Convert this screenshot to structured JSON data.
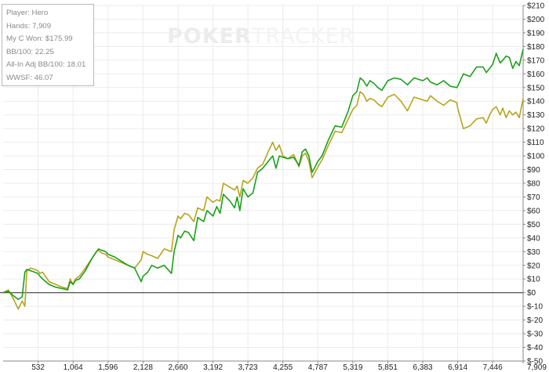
{
  "watermark": {
    "part1": "POKER",
    "part2": "TRACKER"
  },
  "legend": {
    "lines": [
      "Player: Hero",
      "Hands: 7,909",
      "My C Won: $175.99",
      "BB/100: 22.25",
      "All-In Adj BB/100: 18.01",
      "WWSF: 46.07"
    ]
  },
  "chart_data": {
    "type": "line",
    "title": "",
    "xlabel": "",
    "ylabel": "",
    "xlim": [
      0,
      7909
    ],
    "ylim": [
      -50,
      210
    ],
    "grid": true,
    "legend_placement": "top-left",
    "x_ticks": [
      "532",
      "1,064",
      "1,596",
      "2,128",
      "2,660",
      "3,192",
      "3,723",
      "4,255",
      "4,787",
      "5,319",
      "5,851",
      "6,383",
      "6,914",
      "7,446",
      "7,909"
    ],
    "x_tick_values": [
      532,
      1064,
      1596,
      2128,
      2660,
      3192,
      3723,
      4255,
      4787,
      5319,
      5851,
      6383,
      6914,
      7446,
      7909
    ],
    "y_ticks": [
      "$-50",
      "$-40",
      "$-30",
      "$-20",
      "$-10",
      "$0",
      "$10",
      "$20",
      "$30",
      "$40",
      "$50",
      "$60",
      "$70",
      "$80",
      "$90",
      "$100",
      "$110",
      "$120",
      "$130",
      "$140",
      "$150",
      "$160",
      "$170",
      "$180",
      "$190",
      "$200",
      "$210"
    ],
    "y_tick_values": [
      -50,
      -40,
      -30,
      -20,
      -10,
      0,
      10,
      20,
      30,
      40,
      50,
      60,
      70,
      80,
      90,
      100,
      110,
      120,
      130,
      140,
      150,
      160,
      170,
      180,
      190,
      200,
      210
    ],
    "series": [
      {
        "color": "#1aa01a",
        "x": [
          0,
          80,
          150,
          230,
          290,
          330,
          360,
          420,
          480,
          530,
          560,
          600,
          700,
          800,
          900,
          980,
          1020,
          1064,
          1100,
          1160,
          1250,
          1350,
          1420,
          1450,
          1500,
          1560,
          1596,
          1700,
          1800,
          1900,
          2000,
          2100,
          2128,
          2200,
          2260,
          2350,
          2450,
          2560,
          2600,
          2660,
          2700,
          2760,
          2820,
          2900,
          2960,
          3050,
          3100,
          3192,
          3250,
          3300,
          3350,
          3450,
          3520,
          3560,
          3600,
          3650,
          3723,
          3800,
          3870,
          3950,
          4050,
          4100,
          4150,
          4200,
          4255,
          4330,
          4420,
          4500,
          4550,
          4600,
          4650,
          4700,
          4787,
          4850,
          4950,
          5050,
          5150,
          5250,
          5319,
          5380,
          5430,
          5480,
          5530,
          5580,
          5640,
          5700,
          5760,
          5851,
          5950,
          6050,
          6150,
          6250,
          6383,
          6450,
          6500,
          6600,
          6700,
          6800,
          6900,
          6914,
          7000,
          7100,
          7200,
          7300,
          7350,
          7400,
          7446,
          7500,
          7560,
          7600,
          7650,
          7700,
          7750,
          7800,
          7850,
          7909
        ],
        "values": [
          0,
          1,
          -2,
          -5,
          -3,
          15,
          17,
          16,
          15,
          14,
          12,
          10,
          6,
          4,
          3,
          2,
          8,
          6,
          9,
          10,
          16,
          25,
          30,
          32,
          31,
          30,
          28,
          26,
          23,
          20,
          18,
          8,
          12,
          15,
          20,
          18,
          20,
          14,
          30,
          42,
          40,
          45,
          44,
          38,
          55,
          52,
          60,
          56,
          63,
          58,
          72,
          67,
          62,
          70,
          60,
          76,
          70,
          73,
          88,
          91,
          97,
          100,
          91,
          100,
          99,
          98,
          99,
          93,
          103,
          105,
          100,
          88,
          96,
          100,
          112,
          122,
          121,
          133,
          144,
          147,
          157,
          155,
          151,
          155,
          153,
          150,
          148,
          155,
          157,
          156,
          152,
          157,
          155,
          157,
          154,
          152,
          155,
          151,
          150,
          151,
          160,
          158,
          165,
          165,
          161,
          164,
          167,
          175,
          168,
          170,
          173,
          172,
          164,
          169,
          166,
          178
        ]
      },
      {
        "color": "#b5a51e",
        "x": [
          0,
          80,
          150,
          230,
          290,
          330,
          360,
          420,
          480,
          530,
          560,
          600,
          700,
          800,
          900,
          980,
          1020,
          1064,
          1100,
          1160,
          1250,
          1350,
          1420,
          1450,
          1500,
          1560,
          1596,
          1700,
          1800,
          1900,
          2000,
          2100,
          2128,
          2200,
          2260,
          2350,
          2450,
          2560,
          2600,
          2660,
          2700,
          2760,
          2820,
          2900,
          2960,
          3050,
          3100,
          3192,
          3250,
          3300,
          3350,
          3450,
          3520,
          3560,
          3600,
          3650,
          3723,
          3800,
          3870,
          3950,
          4050,
          4100,
          4150,
          4200,
          4255,
          4330,
          4420,
          4500,
          4550,
          4600,
          4650,
          4700,
          4787,
          4850,
          4950,
          5050,
          5150,
          5250,
          5319,
          5380,
          5430,
          5480,
          5530,
          5580,
          5640,
          5700,
          5760,
          5851,
          5950,
          6050,
          6150,
          6250,
          6383,
          6450,
          6500,
          6600,
          6700,
          6800,
          6900,
          6914,
          7000,
          7100,
          7200,
          7300,
          7350,
          7400,
          7446,
          7500,
          7560,
          7600,
          7650,
          7700,
          7750,
          7800,
          7850,
          7909
        ],
        "values": [
          0,
          2,
          -4,
          -12,
          -6,
          -10,
          16,
          18,
          17,
          16,
          14,
          15,
          8,
          6,
          4,
          3,
          10,
          6,
          10,
          12,
          18,
          25,
          30,
          31,
          29,
          28,
          26,
          24,
          22,
          20,
          18,
          24,
          30,
          28,
          27,
          25,
          32,
          30,
          46,
          56,
          54,
          58,
          57,
          52,
          62,
          60,
          70,
          66,
          68,
          67,
          80,
          77,
          75,
          78,
          70,
          82,
          80,
          84,
          91,
          94,
          105,
          110,
          104,
          108,
          100,
          98,
          101,
          92,
          100,
          102,
          96,
          84,
          92,
          97,
          108,
          118,
          117,
          127,
          134,
          137,
          147,
          145,
          140,
          142,
          141,
          138,
          136,
          143,
          145,
          140,
          133,
          143,
          141,
          140,
          144,
          140,
          137,
          141,
          139,
          135,
          120,
          122,
          127,
          128,
          124,
          130,
          134,
          136,
          130,
          135,
          128,
          133,
          130,
          132,
          128,
          142
        ]
      }
    ]
  }
}
